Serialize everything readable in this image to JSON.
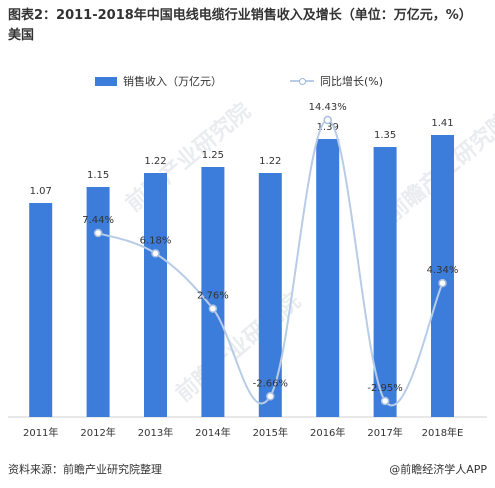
{
  "title": "图表2：2011-2018年中国电线电缆行业销售收入及增长（单位：万亿元，%）　美国",
  "colors": {
    "bar": "#3c7ddc",
    "line": "#b8cce8",
    "marker_stroke": "#a8bfe0"
  },
  "legend": {
    "bar_label": "销售收入（万亿元）",
    "line_label": "同比增长(%)"
  },
  "chart_data": {
    "type": "bar",
    "categories": [
      "2011年",
      "2012年",
      "2013年",
      "2014年",
      "2015年",
      "2016年",
      "2017年",
      "2018年E"
    ],
    "series": [
      {
        "name": "销售收入（万亿元）",
        "type": "bar",
        "values": [
          1.07,
          1.15,
          1.22,
          1.25,
          1.22,
          1.39,
          1.35,
          1.41
        ]
      },
      {
        "name": "同比增长(%)",
        "type": "line",
        "values": [
          null,
          7.44,
          6.18,
          2.76,
          -2.66,
          14.43,
          -2.95,
          4.34
        ]
      }
    ],
    "bar_labels": [
      "1.07",
      "1.15",
      "1.22",
      "1.25",
      "1.22",
      "1.39",
      "1.35",
      "1.41"
    ],
    "line_labels": [
      "",
      "7.44%",
      "6.18%",
      "2.76%",
      "-2.66%",
      "14.43%",
      "-2.95%",
      "4.34%"
    ],
    "legend_position": "top",
    "grid": false
  },
  "footer": {
    "source": "资料来源：前瞻产业研究院整理",
    "brand": "@前瞻经济学人APP"
  },
  "watermark": "前瞻产业研究院"
}
